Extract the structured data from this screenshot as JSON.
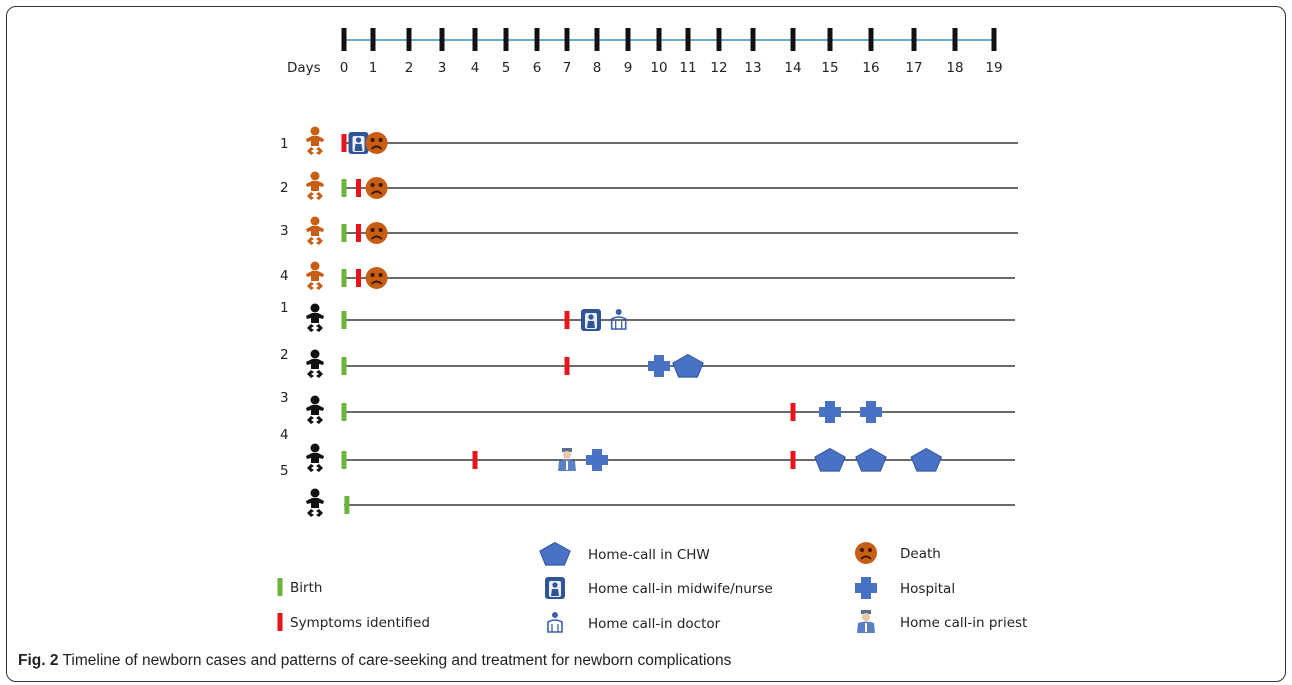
{
  "timeline": {
    "axis_label": "Days",
    "days": [
      "0",
      "1",
      "2",
      "3",
      "4",
      "5",
      "6",
      "7",
      "8",
      "9",
      "10",
      "11",
      "12",
      "13",
      "14",
      "15",
      "16",
      "17",
      "18",
      "19"
    ]
  },
  "groups": [
    {
      "color": "#c85d14",
      "cases": [
        {
          "label": "1",
          "events": [
            {
              "day": 0,
              "type": "birth"
            },
            {
              "day": 0,
              "type": "symptoms"
            },
            {
              "day": 0.5,
              "type": "midwife"
            },
            {
              "day": 1.1,
              "type": "death"
            }
          ]
        },
        {
          "label": "2",
          "events": [
            {
              "day": 0,
              "type": "birth"
            },
            {
              "day": 0.5,
              "type": "symptoms"
            },
            {
              "day": 1.1,
              "type": "death"
            }
          ]
        },
        {
          "label": "3",
          "events": [
            {
              "day": 0,
              "type": "birth"
            },
            {
              "day": 0.5,
              "type": "symptoms"
            },
            {
              "day": 1.1,
              "type": "death"
            }
          ]
        },
        {
          "label": "4",
          "events": [
            {
              "day": 0,
              "type": "birth"
            },
            {
              "day": 0.5,
              "type": "symptoms"
            },
            {
              "day": 1.1,
              "type": "death"
            }
          ]
        }
      ]
    },
    {
      "color": "#111111",
      "cases": [
        {
          "label": "1",
          "events": [
            {
              "day": 0,
              "type": "birth"
            },
            {
              "day": 7,
              "type": "symptoms"
            },
            {
              "day": 7.8,
              "type": "midwife"
            },
            {
              "day": 8.7,
              "type": "doctor"
            }
          ]
        },
        {
          "label": "2",
          "events": [
            {
              "day": 0,
              "type": "birth"
            },
            {
              "day": 7,
              "type": "symptoms"
            },
            {
              "day": 10,
              "type": "hospital"
            },
            {
              "day": 11,
              "type": "chw"
            }
          ]
        },
        {
          "label": "3",
          "events": [
            {
              "day": 0,
              "type": "birth"
            },
            {
              "day": 14,
              "type": "symptoms"
            },
            {
              "day": 15,
              "type": "hospital"
            },
            {
              "day": 16,
              "type": "hospital"
            }
          ]
        },
        {
          "label": "4",
          "events": [
            {
              "day": 0,
              "type": "birth"
            },
            {
              "day": 4,
              "type": "symptoms"
            },
            {
              "day": 7,
              "type": "priest"
            },
            {
              "day": 8,
              "type": "hospital"
            },
            {
              "day": 14,
              "type": "symptoms"
            },
            {
              "day": 15,
              "type": "chw"
            },
            {
              "day": 16,
              "type": "chw"
            },
            {
              "day": 17.3,
              "type": "chw"
            }
          ]
        },
        {
          "label": "5",
          "events": [
            {
              "day": 0.1,
              "type": "birth"
            }
          ]
        }
      ]
    }
  ],
  "legend": [
    {
      "type": "birth",
      "label": "Birth",
      "icon": "green-bar-icon"
    },
    {
      "type": "symptoms",
      "label": "Symptoms identified",
      "icon": "red-bar-icon"
    },
    {
      "type": "chw",
      "label": "Home-call in CHW",
      "icon": "pentagon-icon"
    },
    {
      "type": "midwife",
      "label": "Home call-in midwife/nurse",
      "icon": "midwife-icon"
    },
    {
      "type": "doctor",
      "label": "Home call-in doctor",
      "icon": "doctor-icon"
    },
    {
      "type": "death",
      "label": "Death",
      "icon": "sad-face-icon"
    },
    {
      "type": "hospital",
      "label": "Hospital",
      "icon": "cross-icon"
    },
    {
      "type": "priest",
      "label": "Home call-in priest",
      "icon": "priest-icon"
    }
  ],
  "caption": {
    "label": "Fig. 2",
    "text": " Timeline of newborn cases and patterns of care-seeking and treatment for newborn complications"
  },
  "colors": {
    "birth": "#6db33f",
    "symptoms": "#e8141b",
    "blue": "#4a72c4",
    "orange": "#c85d14",
    "axis": "#3a8fc1"
  }
}
